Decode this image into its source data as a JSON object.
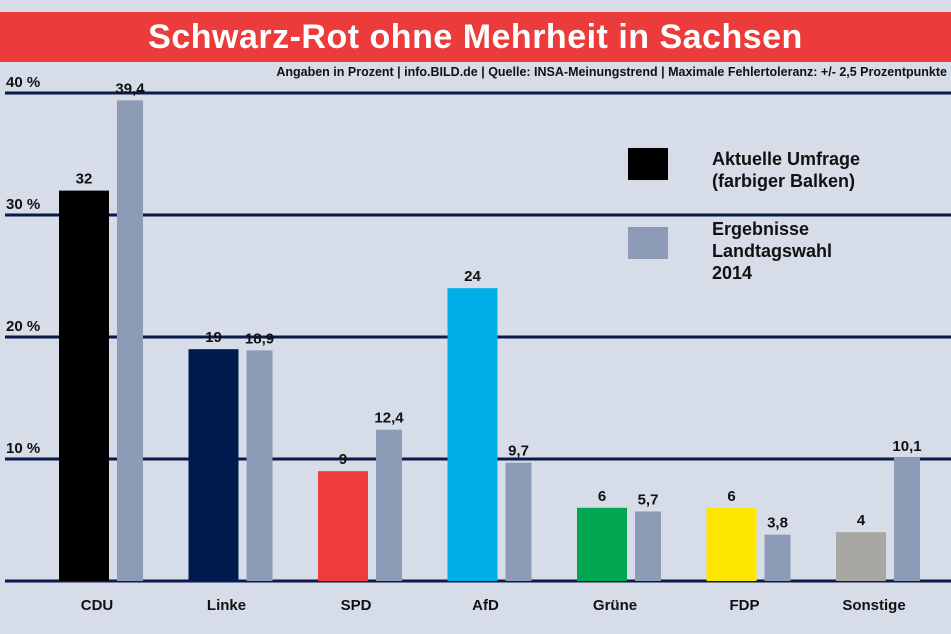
{
  "header": {
    "title": "Schwarz-Rot ohne Mehrheit in Sachsen",
    "subtitle": "Angaben in Prozent | info.BILD.de | Quelle: INSA-Meinungstrend | Maximale Fehlertoleranz: +/- 2,5 Prozentpunkte"
  },
  "legend": {
    "current": {
      "label_line1": "Aktuelle Umfrage",
      "label_line2": "(farbiger Balken)",
      "color": "#000000"
    },
    "previous": {
      "label_line1": "Ergebnisse",
      "label_line2": "Landtagswahl",
      "label_line3": "2014",
      "color": "#8e9bb6"
    }
  },
  "chart_data": {
    "type": "bar",
    "title": "Schwarz-Rot ohne Mehrheit in Sachsen",
    "ylim": [
      0,
      40
    ],
    "yticks": [
      10,
      20,
      30,
      40
    ],
    "ytick_labels": [
      "10 %",
      "20 %",
      "30 %",
      "40 %"
    ],
    "grid": true,
    "legend_position": "top-right",
    "categories": [
      "CDU",
      "Linke",
      "SPD",
      "AfD",
      "Grüne",
      "FDP",
      "Sonstige"
    ],
    "series": [
      {
        "name": "Aktuelle Umfrage (farbiger Balken)",
        "values": [
          32,
          19,
          9,
          24,
          6,
          6,
          4
        ],
        "value_labels": [
          "32",
          "19",
          "9",
          "24",
          "6",
          "6",
          "4"
        ],
        "colors": [
          "#000000",
          "#001a4d",
          "#ee3b3b",
          "#00aee8",
          "#00a651",
          "#ffe600",
          "#a8a7a2"
        ]
      },
      {
        "name": "Ergebnisse Landtagswahl 2014",
        "values": [
          39.4,
          18.9,
          12.4,
          9.7,
          5.7,
          3.8,
          10.1
        ],
        "value_labels": [
          "39,4",
          "18,9",
          "12,4",
          "9,7",
          "5,7",
          "3,8",
          "10,1"
        ],
        "color": "#8e9bb6"
      }
    ]
  }
}
